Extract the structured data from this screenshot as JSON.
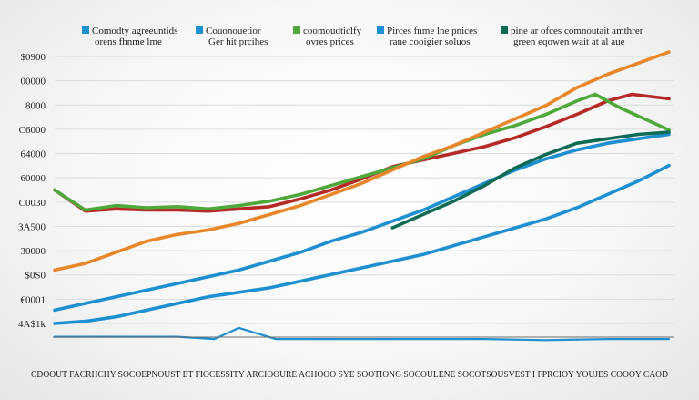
{
  "chart_data": {
    "type": "line",
    "title": "",
    "xlabel": "CDOOUT FACRHCHY SOCOEPNOUST ET FIOCESSITY ARCIOOURE ACHOOO SYE SOOTIONG SOCOULENE SOCOTSOUSVEST I FPRCIOY YOUJES COOOY CAOD",
    "ylabel": "",
    "grid": true,
    "y_tick_labels": [
      "$0900",
      "00000",
      "8000",
      "C6000",
      "64000",
      "60000",
      "C0030",
      "3A500",
      "30000",
      "$0S0",
      "€0001",
      "4A$1k"
    ],
    "legend": [
      {
        "title": "Comodty agreeuntids",
        "subtitle": "orens fhnme lme",
        "color": "#1e8fd0"
      },
      {
        "title": "Couonouetior",
        "subtitle": "Ger hit prcihes",
        "color": "#1e8fd0"
      },
      {
        "title": "coomoudticlfy",
        "subtitle": "ovres prices",
        "color": "#4ea83a"
      },
      {
        "title": "Pirces fnme lne pnices",
        "subtitle": "rane cooigier soluos",
        "color": "#1e8fd0"
      },
      {
        "title": "pine ar ofces comnoutait amthrer",
        "subtitle": "green eqowen wait at al aue",
        "color": "#0f6b55"
      }
    ],
    "ylim": [
      0,
      12
    ],
    "xlim": [
      0,
      100
    ],
    "series": [
      {
        "color": "#b52a26",
        "x": [
          0,
          5,
          10,
          15,
          20,
          25,
          30,
          35,
          40,
          45,
          50,
          55,
          60,
          65,
          70,
          75,
          80,
          85,
          90,
          94,
          100
        ],
        "y": [
          6.0,
          5.05,
          5.15,
          5.1,
          5.1,
          5.05,
          5.15,
          5.25,
          5.6,
          6.0,
          6.5,
          7.05,
          7.35,
          7.65,
          7.95,
          8.35,
          8.85,
          9.4,
          10.0,
          10.3,
          10.1
        ]
      },
      {
        "color": "#4ea83a",
        "x": [
          0,
          5,
          10,
          15,
          20,
          25,
          30,
          35,
          40,
          45,
          50,
          55,
          60,
          65,
          70,
          75,
          80,
          85,
          88,
          92,
          96,
          100
        ],
        "y": [
          6.0,
          5.1,
          5.3,
          5.2,
          5.25,
          5.15,
          5.3,
          5.5,
          5.8,
          6.2,
          6.6,
          7.0,
          7.4,
          8.0,
          8.5,
          8.9,
          9.4,
          10.0,
          10.3,
          9.7,
          9.2,
          8.7
        ]
      },
      {
        "color": "#e8862a",
        "x": [
          0,
          5,
          10,
          15,
          20,
          25,
          30,
          35,
          40,
          45,
          50,
          55,
          60,
          65,
          70,
          75,
          80,
          85,
          90,
          95,
          100
        ],
        "y": [
          2.4,
          2.7,
          3.2,
          3.7,
          4.0,
          4.2,
          4.5,
          4.9,
          5.3,
          5.8,
          6.3,
          6.9,
          7.5,
          8.0,
          8.6,
          9.2,
          9.8,
          10.6,
          11.2,
          11.7,
          12.2
        ]
      },
      {
        "color": "#1e8fd0",
        "x": [
          0,
          5,
          10,
          15,
          20,
          25,
          30,
          35,
          40,
          45,
          50,
          55,
          60,
          65,
          70,
          75,
          80,
          85,
          90,
          95,
          100
        ],
        "y": [
          0.6,
          0.9,
          1.2,
          1.5,
          1.8,
          2.1,
          2.4,
          2.8,
          3.2,
          3.7,
          4.1,
          4.6,
          5.1,
          5.7,
          6.3,
          6.9,
          7.4,
          7.8,
          8.1,
          8.3,
          8.5
        ]
      },
      {
        "color": "#0f6b55",
        "x": [
          55,
          60,
          65,
          70,
          75,
          80,
          85,
          90,
          95,
          100
        ],
        "y": [
          4.3,
          4.9,
          5.5,
          6.2,
          7.0,
          7.6,
          8.1,
          8.3,
          8.5,
          8.6
        ]
      },
      {
        "color": "#1e8fd0",
        "x": [
          0,
          5,
          10,
          15,
          20,
          25,
          30,
          35,
          40,
          45,
          50,
          55,
          60,
          65,
          70,
          75,
          80,
          85,
          90,
          95,
          100
        ],
        "y": [
          0.0,
          0.1,
          0.3,
          0.6,
          0.9,
          1.2,
          1.4,
          1.6,
          1.9,
          2.2,
          2.5,
          2.8,
          3.1,
          3.5,
          3.9,
          4.3,
          4.7,
          5.2,
          5.8,
          6.4,
          7.1
        ]
      },
      {
        "color": "#1e8fd0",
        "x": [
          0,
          10,
          20,
          26,
          30,
          36,
          40,
          50,
          60,
          70,
          80,
          90,
          100
        ],
        "y": [
          -0.6,
          -0.6,
          -0.6,
          -0.7,
          -0.2,
          -0.7,
          -0.7,
          -0.7,
          -0.7,
          -0.7,
          -0.75,
          -0.7,
          -0.7
        ]
      }
    ]
  }
}
